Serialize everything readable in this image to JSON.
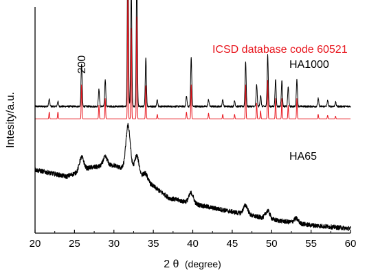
{
  "chart_data": {
    "type": "line",
    "title": "",
    "xlabel": "2 θ (degree)",
    "xlabel_parts": {
      "symbol": "2 θ",
      "unit": "(degree)"
    },
    "ylabel": "Intesity/a.u.",
    "xlim": [
      20,
      60
    ],
    "x_ticks": [
      20,
      25,
      30,
      35,
      40,
      45,
      50,
      55,
      60
    ],
    "y_ticks_labeled": false,
    "grid": false,
    "annotations": [
      {
        "text": "ICSD database code 60521",
        "color": "#e8141c"
      },
      {
        "text": "HA1000",
        "color": "#000000"
      },
      {
        "text": "HA65",
        "color": "#000000"
      },
      {
        "text": "200",
        "color": "#000000",
        "rotated": true,
        "at_x": 25.9
      }
    ],
    "series": [
      {
        "name": "HA1000",
        "color": "#000000",
        "baseline": 0.56,
        "noise": 0.004,
        "peaks": [
          [
            21.8,
            0.032
          ],
          [
            22.9,
            0.022
          ],
          [
            25.9,
            0.19
          ],
          [
            28.1,
            0.075
          ],
          [
            28.9,
            0.119
          ],
          [
            31.77,
            0.76
          ],
          [
            32.2,
            0.53
          ],
          [
            32.9,
            0.573
          ],
          [
            34.05,
            0.217
          ],
          [
            35.5,
            0.03
          ],
          [
            39.2,
            0.045
          ],
          [
            39.8,
            0.216
          ],
          [
            42.0,
            0.03
          ],
          [
            43.8,
            0.03
          ],
          [
            45.3,
            0.025
          ],
          [
            46.7,
            0.199
          ],
          [
            48.1,
            0.097
          ],
          [
            48.6,
            0.05
          ],
          [
            49.5,
            0.228
          ],
          [
            50.5,
            0.119
          ],
          [
            51.3,
            0.114
          ],
          [
            52.1,
            0.085
          ],
          [
            53.2,
            0.119
          ],
          [
            55.9,
            0.035
          ],
          [
            57.1,
            0.025
          ],
          [
            58.1,
            0.02
          ]
        ]
      },
      {
        "name": "ICSD database code 60521",
        "color": "#e8141c",
        "baseline": 0.505,
        "noise": 0,
        "peaks": [
          [
            21.8,
            0.03
          ],
          [
            22.9,
            0.03
          ],
          [
            25.9,
            0.15
          ],
          [
            28.1,
            0.06
          ],
          [
            28.9,
            0.09
          ],
          [
            31.77,
            0.6
          ],
          [
            32.2,
            0.4
          ],
          [
            32.9,
            0.45
          ],
          [
            34.05,
            0.15
          ],
          [
            35.5,
            0.02
          ],
          [
            39.2,
            0.03
          ],
          [
            39.8,
            0.15
          ],
          [
            42.0,
            0.025
          ],
          [
            43.8,
            0.02
          ],
          [
            45.3,
            0.02
          ],
          [
            46.7,
            0.15
          ],
          [
            48.1,
            0.07
          ],
          [
            48.6,
            0.035
          ],
          [
            49.5,
            0.17
          ],
          [
            50.5,
            0.09
          ],
          [
            51.3,
            0.09
          ],
          [
            52.1,
            0.06
          ],
          [
            53.2,
            0.09
          ],
          [
            55.9,
            0.02
          ],
          [
            57.1,
            0.015
          ],
          [
            58.1,
            0.012
          ]
        ]
      },
      {
        "name": "HA65",
        "color": "#000000",
        "noise": 0.01,
        "baseline_points": [
          [
            20,
            0.28
          ],
          [
            24,
            0.25
          ],
          [
            27,
            0.29
          ],
          [
            30,
            0.3
          ],
          [
            33,
            0.26
          ],
          [
            37,
            0.155
          ],
          [
            42,
            0.115
          ],
          [
            50,
            0.06
          ],
          [
            55,
            0.035
          ],
          [
            60,
            0.02
          ]
        ],
        "peaks": [
          [
            25.9,
            0.06
          ],
          [
            28.9,
            0.04
          ],
          [
            31.8,
            0.2
          ],
          [
            32.9,
            0.08
          ],
          [
            34.0,
            0.03
          ],
          [
            39.8,
            0.045
          ],
          [
            46.7,
            0.04
          ],
          [
            49.5,
            0.035
          ],
          [
            53.1,
            0.02
          ]
        ]
      }
    ]
  }
}
